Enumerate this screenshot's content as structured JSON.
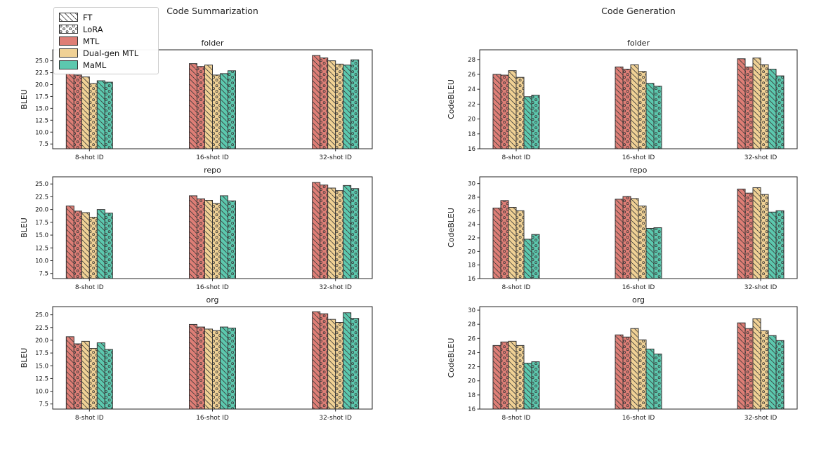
{
  "figure": {
    "column_titles": [
      {
        "label": "Code Summarization"
      },
      {
        "label": "Code Generation"
      }
    ]
  },
  "legend": {
    "items": [
      {
        "label": "FT",
        "fill": "#FFFFFF",
        "hatch": "diag"
      },
      {
        "label": "LoRA",
        "fill": "#FFFFFF",
        "hatch": "dots"
      },
      {
        "label": "MTL",
        "fill": "#DE7E76",
        "hatch": "none"
      },
      {
        "label": "Dual-gen MTL",
        "fill": "#F0D195",
        "hatch": "none"
      },
      {
        "label": "MaML",
        "fill": "#5CC8AE",
        "hatch": "none"
      }
    ]
  },
  "colors": {
    "mtl": "#DE7E76",
    "dual_gen_mtl": "#F0D195",
    "maml": "#5CC8AE",
    "bar_edge": "#333333",
    "hatch": "#3a3a3a",
    "spine": "#262626"
  },
  "chart_data": [
    {
      "id": "summarization-folder",
      "type": "bar",
      "column": 0,
      "row": 0,
      "title": "folder",
      "ylabel": "BLEU",
      "xlabel": "",
      "categories": [
        "8-shot ID",
        "16-shot ID",
        "32-shot ID"
      ],
      "ylim": [
        6.5,
        27.3
      ],
      "yticks": [
        7.5,
        10.0,
        12.5,
        15.0,
        17.5,
        20.0,
        22.5,
        25.0
      ],
      "ytick_labels": [
        "7.5",
        "10.0",
        "12.5",
        "15.0",
        "17.5",
        "20.0",
        "22.5",
        "25.0"
      ],
      "legend_position": "outside-top-left",
      "grid": false,
      "series": [
        {
          "name": "MTL (FT)",
          "color": "#DE7E76",
          "hatch": "diag",
          "values": [
            22.4,
            24.4,
            26.1
          ]
        },
        {
          "name": "MTL (LoRA)",
          "color": "#DE7E76",
          "hatch": "dots",
          "values": [
            22.0,
            23.8,
            25.6
          ]
        },
        {
          "name": "Dual-gen MTL (FT)",
          "color": "#F0D195",
          "hatch": "diag",
          "values": [
            21.6,
            24.1,
            25.0
          ]
        },
        {
          "name": "Dual-gen MTL (LoRA)",
          "color": "#F0D195",
          "hatch": "dots",
          "values": [
            20.2,
            22.0,
            24.3
          ]
        },
        {
          "name": "MaML (FT)",
          "color": "#5CC8AE",
          "hatch": "diag",
          "values": [
            20.8,
            22.3,
            24.1
          ]
        },
        {
          "name": "MaML (LoRA)",
          "color": "#5CC8AE",
          "hatch": "dots",
          "values": [
            20.5,
            22.9,
            25.2
          ]
        }
      ]
    },
    {
      "id": "summarization-repo",
      "type": "bar",
      "column": 0,
      "row": 1,
      "title": "repo",
      "ylabel": "BLEU",
      "xlabel": "",
      "categories": [
        "8-shot ID",
        "16-shot ID",
        "32-shot ID"
      ],
      "ylim": [
        6.5,
        26.4
      ],
      "yticks": [
        7.5,
        10.0,
        12.5,
        15.0,
        17.5,
        20.0,
        22.5,
        25.0
      ],
      "ytick_labels": [
        "7.5",
        "10.0",
        "12.5",
        "15.0",
        "17.5",
        "20.0",
        "22.5",
        "25.0"
      ],
      "grid": false,
      "series": [
        {
          "name": "MTL (FT)",
          "color": "#DE7E76",
          "hatch": "diag",
          "values": [
            20.7,
            22.7,
            25.3
          ]
        },
        {
          "name": "MTL (LoRA)",
          "color": "#DE7E76",
          "hatch": "dots",
          "values": [
            19.7,
            22.1,
            24.8
          ]
        },
        {
          "name": "Dual-gen MTL (FT)",
          "color": "#F0D195",
          "hatch": "diag",
          "values": [
            19.4,
            21.8,
            24.2
          ]
        },
        {
          "name": "Dual-gen MTL (LoRA)",
          "color": "#F0D195",
          "hatch": "dots",
          "values": [
            18.5,
            21.2,
            23.7
          ]
        },
        {
          "name": "MaML (FT)",
          "color": "#5CC8AE",
          "hatch": "diag",
          "values": [
            20.0,
            22.7,
            24.7
          ]
        },
        {
          "name": "MaML (LoRA)",
          "color": "#5CC8AE",
          "hatch": "dots",
          "values": [
            19.3,
            21.7,
            24.1
          ]
        }
      ]
    },
    {
      "id": "summarization-org",
      "type": "bar",
      "column": 0,
      "row": 2,
      "title": "org",
      "ylabel": "BLEU",
      "xlabel": "",
      "categories": [
        "8-shot ID",
        "16-shot ID",
        "32-shot ID"
      ],
      "ylim": [
        6.5,
        26.6
      ],
      "yticks": [
        7.5,
        10.0,
        12.5,
        15.0,
        17.5,
        20.0,
        22.5,
        25.0
      ],
      "ytick_labels": [
        "7.5",
        "10.0",
        "12.5",
        "15.0",
        "17.5",
        "20.0",
        "22.5",
        "25.0"
      ],
      "grid": false,
      "series": [
        {
          "name": "MTL (FT)",
          "color": "#DE7E76",
          "hatch": "diag",
          "values": [
            20.7,
            23.1,
            25.6
          ]
        },
        {
          "name": "MTL (LoRA)",
          "color": "#DE7E76",
          "hatch": "dots",
          "values": [
            19.3,
            22.6,
            25.2
          ]
        },
        {
          "name": "Dual-gen MTL (FT)",
          "color": "#F0D195",
          "hatch": "diag",
          "values": [
            19.8,
            22.2,
            24.1
          ]
        },
        {
          "name": "Dual-gen MTL (LoRA)",
          "color": "#F0D195",
          "hatch": "dots",
          "values": [
            18.4,
            21.9,
            23.5
          ]
        },
        {
          "name": "MaML (FT)",
          "color": "#5CC8AE",
          "hatch": "diag",
          "values": [
            19.5,
            22.6,
            25.4
          ]
        },
        {
          "name": "MaML (LoRA)",
          "color": "#5CC8AE",
          "hatch": "dots",
          "values": [
            18.2,
            22.4,
            24.3
          ]
        }
      ]
    },
    {
      "id": "generation-folder",
      "type": "bar",
      "column": 1,
      "row": 0,
      "title": "folder",
      "ylabel": "CodeBLEU",
      "xlabel": "",
      "categories": [
        "8-shot ID",
        "16-shot ID",
        "32-shot ID"
      ],
      "ylim": [
        16,
        29.3
      ],
      "yticks": [
        16,
        18,
        20,
        22,
        24,
        26,
        28
      ],
      "ytick_labels": [
        "16",
        "18",
        "20",
        "22",
        "24",
        "26",
        "28"
      ],
      "grid": false,
      "series": [
        {
          "name": "MTL (FT)",
          "color": "#DE7E76",
          "hatch": "diag",
          "values": [
            26.0,
            27.0,
            28.1
          ]
        },
        {
          "name": "MTL (LoRA)",
          "color": "#DE7E76",
          "hatch": "dots",
          "values": [
            25.9,
            26.7,
            27.0
          ]
        },
        {
          "name": "Dual-gen MTL (FT)",
          "color": "#F0D195",
          "hatch": "diag",
          "values": [
            26.5,
            27.3,
            28.2
          ]
        },
        {
          "name": "Dual-gen MTL (LoRA)",
          "color": "#F0D195",
          "hatch": "dots",
          "values": [
            25.6,
            26.4,
            27.3
          ]
        },
        {
          "name": "MaML (FT)",
          "color": "#5CC8AE",
          "hatch": "diag",
          "values": [
            23.0,
            24.8,
            26.7
          ]
        },
        {
          "name": "MaML (LoRA)",
          "color": "#5CC8AE",
          "hatch": "dots",
          "values": [
            23.2,
            24.4,
            25.8
          ]
        }
      ]
    },
    {
      "id": "generation-repo",
      "type": "bar",
      "column": 1,
      "row": 1,
      "title": "repo",
      "ylabel": "CodeBLEU",
      "xlabel": "",
      "categories": [
        "8-shot ID",
        "16-shot ID",
        "32-shot ID"
      ],
      "ylim": [
        16,
        31.0
      ],
      "yticks": [
        16,
        18,
        20,
        22,
        24,
        26,
        28,
        30
      ],
      "ytick_labels": [
        "16",
        "18",
        "20",
        "22",
        "24",
        "26",
        "28",
        "30"
      ],
      "grid": false,
      "series": [
        {
          "name": "MTL (FT)",
          "color": "#DE7E76",
          "hatch": "diag",
          "values": [
            26.4,
            27.7,
            29.2
          ]
        },
        {
          "name": "MTL (LoRA)",
          "color": "#DE7E76",
          "hatch": "dots",
          "values": [
            27.5,
            28.1,
            28.6
          ]
        },
        {
          "name": "Dual-gen MTL (FT)",
          "color": "#F0D195",
          "hatch": "diag",
          "values": [
            26.5,
            27.8,
            29.4
          ]
        },
        {
          "name": "Dual-gen MTL (LoRA)",
          "color": "#F0D195",
          "hatch": "dots",
          "values": [
            26.0,
            26.7,
            28.4
          ]
        },
        {
          "name": "MaML (FT)",
          "color": "#5CC8AE",
          "hatch": "diag",
          "values": [
            21.8,
            23.4,
            25.8
          ]
        },
        {
          "name": "MaML (LoRA)",
          "color": "#5CC8AE",
          "hatch": "dots",
          "values": [
            22.5,
            23.5,
            26.0
          ]
        }
      ]
    },
    {
      "id": "generation-org",
      "type": "bar",
      "column": 1,
      "row": 2,
      "title": "org",
      "ylabel": "CodeBLEU",
      "xlabel": "",
      "categories": [
        "8-shot ID",
        "16-shot ID",
        "32-shot ID"
      ],
      "ylim": [
        16,
        30.5
      ],
      "yticks": [
        16,
        18,
        20,
        22,
        24,
        26,
        28,
        30
      ],
      "ytick_labels": [
        "16",
        "18",
        "20",
        "22",
        "24",
        "26",
        "28",
        "30"
      ],
      "grid": false,
      "series": [
        {
          "name": "MTL (FT)",
          "color": "#DE7E76",
          "hatch": "diag",
          "values": [
            25.0,
            26.5,
            28.2
          ]
        },
        {
          "name": "MTL (LoRA)",
          "color": "#DE7E76",
          "hatch": "dots",
          "values": [
            25.5,
            26.2,
            27.4
          ]
        },
        {
          "name": "Dual-gen MTL (FT)",
          "color": "#F0D195",
          "hatch": "diag",
          "values": [
            25.6,
            27.4,
            28.8
          ]
        },
        {
          "name": "Dual-gen MTL (LoRA)",
          "color": "#F0D195",
          "hatch": "dots",
          "values": [
            25.0,
            25.8,
            27.1
          ]
        },
        {
          "name": "MaML (FT)",
          "color": "#5CC8AE",
          "hatch": "diag",
          "values": [
            22.5,
            24.5,
            26.4
          ]
        },
        {
          "name": "MaML (LoRA)",
          "color": "#5CC8AE",
          "hatch": "dots",
          "values": [
            22.7,
            23.8,
            25.7
          ]
        }
      ]
    }
  ]
}
